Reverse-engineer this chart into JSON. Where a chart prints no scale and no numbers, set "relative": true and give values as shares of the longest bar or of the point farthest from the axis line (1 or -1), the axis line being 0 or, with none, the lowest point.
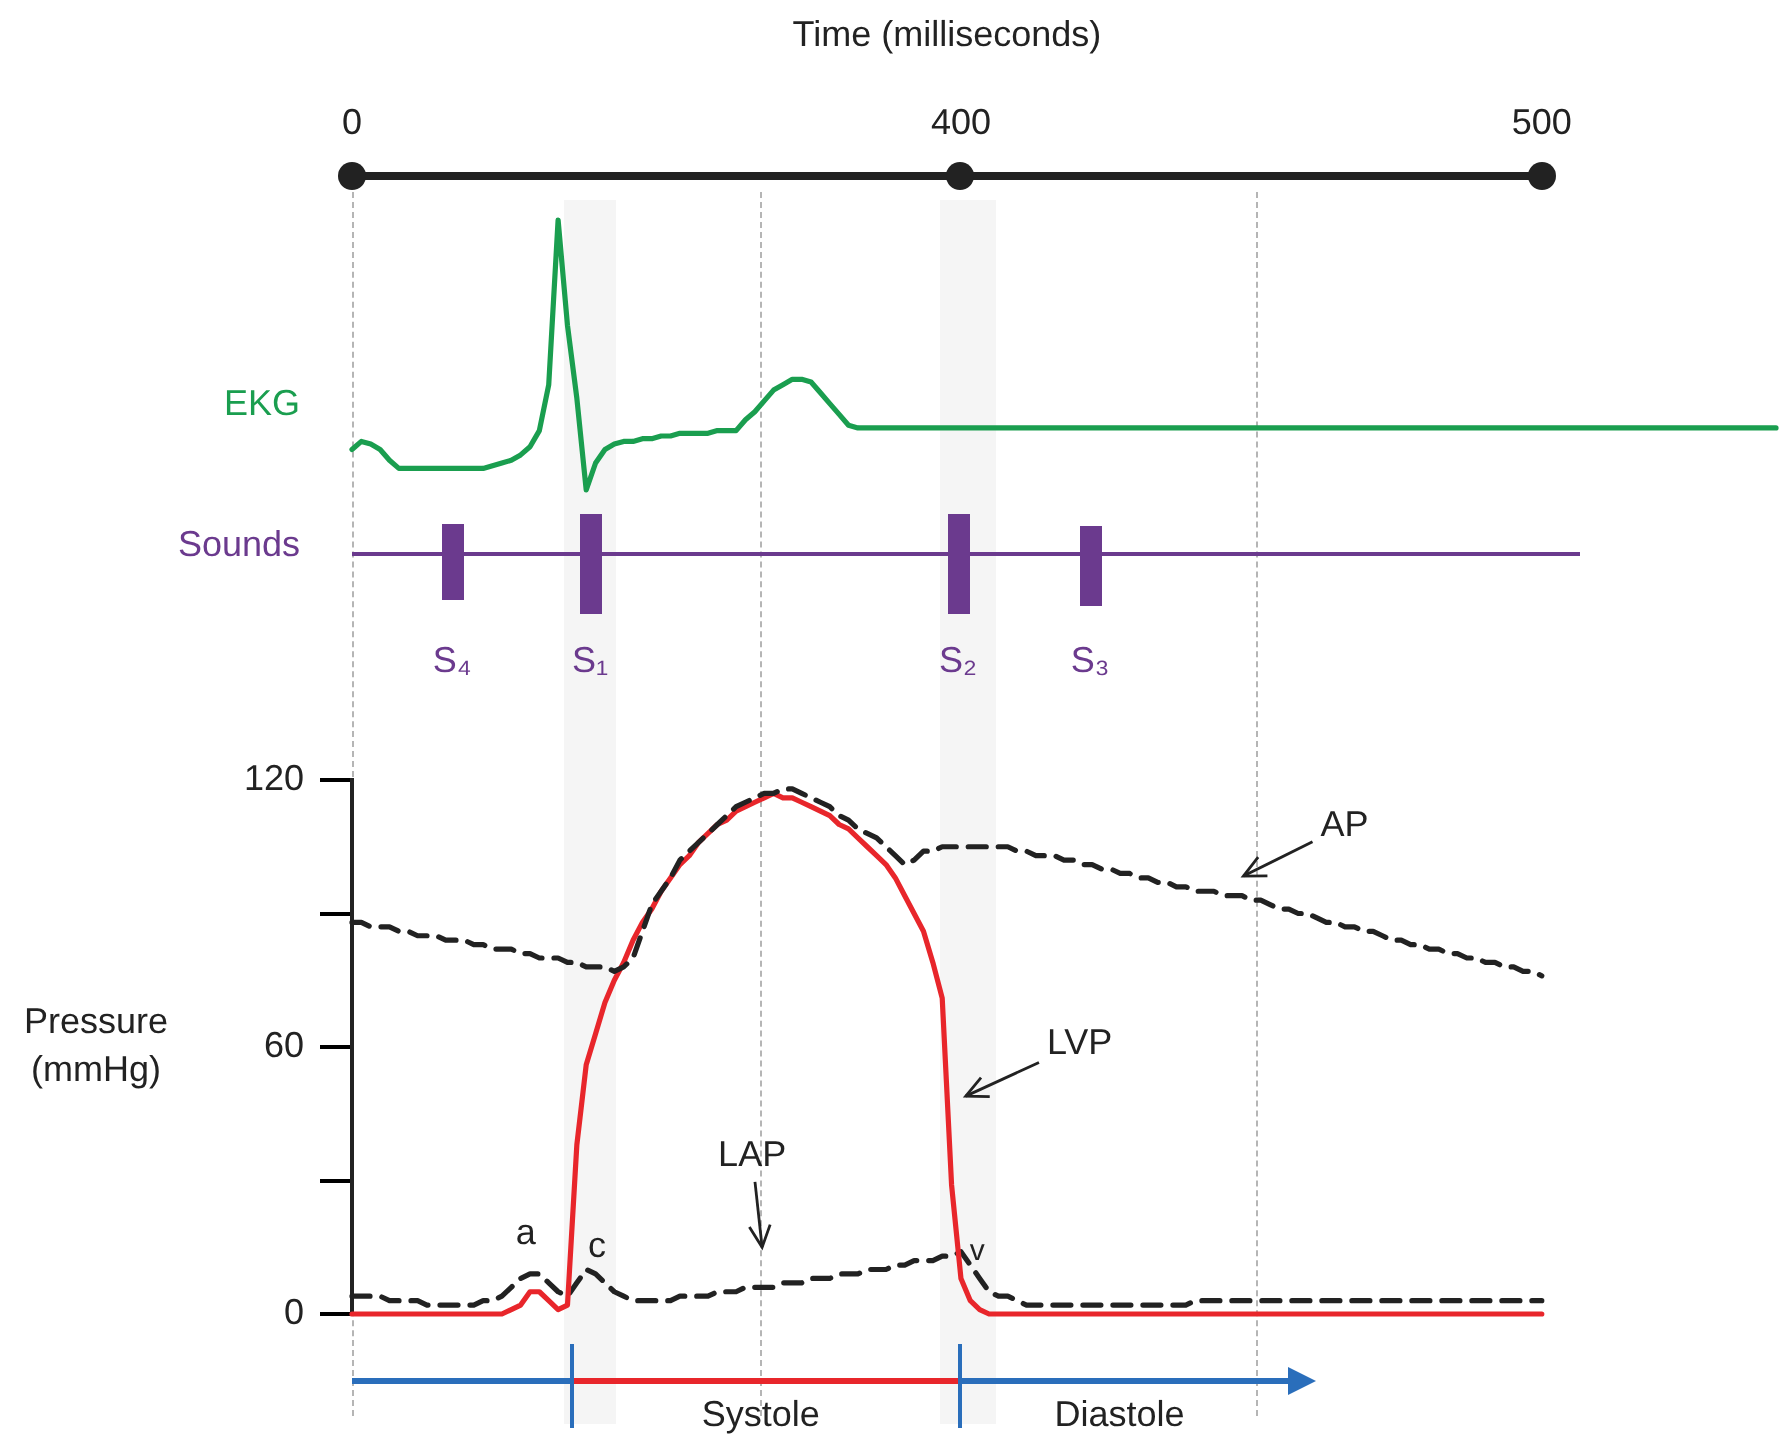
{
  "chart_data": [
    {
      "type": "line",
      "xlabel": "Time (milliseconds)",
      "ylabel": "EKG",
      "relative": true,
      "tick_labels": "x",
      "categories": [
        "0",
        null,
        null,
        null,
        null,
        null,
        null,
        null,
        null,
        null,
        null,
        null,
        null,
        null,
        null,
        null,
        null,
        null,
        null,
        null,
        null,
        null,
        null,
        null,
        null,
        null,
        null,
        null,
        null,
        null,
        null,
        null,
        null,
        null,
        null,
        null,
        null,
        null,
        null,
        null,
        null,
        null,
        null,
        null,
        null,
        null,
        null,
        null,
        null,
        null,
        null,
        null,
        null,
        null,
        null,
        null,
        null,
        null,
        null,
        null,
        null,
        null,
        null,
        null,
        null,
        "400",
        null,
        null,
        null,
        null,
        null,
        null,
        null,
        null,
        null,
        null,
        null,
        null,
        null,
        null,
        null,
        null,
        null,
        null,
        null,
        null,
        null,
        null,
        null,
        null,
        null,
        null,
        null,
        null,
        null,
        null,
        null,
        null,
        null,
        null,
        null,
        null,
        null,
        null,
        null,
        null,
        null,
        null,
        null,
        null,
        null,
        null,
        null,
        null,
        null,
        null,
        null,
        null,
        null,
        null,
        null,
        null,
        null,
        null,
        null,
        null,
        null,
        "500",
        null,
        null,
        null,
        null,
        null,
        null,
        null,
        null,
        null,
        null,
        null,
        null,
        null,
        null,
        null,
        null,
        null,
        null,
        null,
        null,
        null,
        null,
        null,
        null,
        null
      ],
      "series": [
        {
          "color": "#1a9e4f",
          "values": [
            0.15,
            0.18,
            0.17,
            0.15,
            0.11,
            0.08,
            0.08,
            0.08,
            0.08,
            0.08,
            0.08,
            0.08,
            0.08,
            0.08,
            0.08,
            0.09,
            0.1,
            0.11,
            0.13,
            0.16,
            0.22,
            0.39,
            1,
            0.61,
            0.34,
            0,
            0.1,
            0.15,
            0.17,
            0.18,
            0.18,
            0.19,
            0.19,
            0.2,
            0.2,
            0.21,
            0.21,
            0.21,
            0.21,
            0.22,
            0.22,
            0.22,
            0.26,
            0.29,
            0.33,
            0.37,
            0.39,
            0.41,
            0.41,
            0.4,
            0.36,
            0.32,
            0.28,
            0.24,
            0.23,
            0.23,
            0.23,
            0.23,
            0.23,
            0.23,
            0.23,
            0.23,
            0.23,
            0.23,
            0.23,
            0.23,
            0.23,
            0.23,
            0.23,
            0.23,
            0.23,
            0.23,
            0.23,
            0.23,
            0.23,
            0.23,
            0.23,
            0.23,
            0.23,
            0.23,
            0.23,
            0.23,
            0.23,
            0.23,
            0.23,
            0.23,
            0.23,
            0.23,
            0.23,
            0.23,
            0.23,
            0.23,
            0.23,
            0.23,
            0.23,
            0.23,
            0.23,
            0.23,
            0.23,
            0.23,
            0.23,
            0.23,
            0.23,
            0.23,
            0.23,
            0.23,
            0.23,
            0.23,
            0.23,
            0.23,
            0.23,
            0.23,
            0.23,
            0.23,
            0.23,
            0.23,
            0.23,
            0.23,
            0.23,
            0.23,
            0.23,
            0.23,
            0.23,
            0.23,
            0.23,
            0.23,
            0.23,
            0.23,
            0.23,
            0.23,
            0.23,
            0.23,
            0.23,
            0.23,
            0.23,
            0.23,
            0.23,
            0.23,
            0.23,
            0.23,
            0.23,
            0.23,
            0.23,
            0.23,
            0.23,
            0.23,
            0.23,
            0.23,
            0.23,
            0.23,
            0.23,
            0.23,
            0.23
          ]
        }
      ]
    },
    {
      "type": "other",
      "title": "Sounds",
      "annotations": [
        "S₄",
        "S₁",
        "S₂",
        "S₃"
      ]
    },
    {
      "type": "line",
      "ylabel": "Pressure (mmHg)",
      "tick_labels": "y",
      "ylim": [
        0,
        120
      ],
      "yticks": [
        0,
        {
          "value": 30,
          "label": null
        },
        60,
        {
          "value": 90,
          "label": null
        },
        120
      ],
      "categories": [
        "0",
        null,
        null,
        null,
        null,
        null,
        null,
        null,
        null,
        null,
        null,
        null,
        null,
        null,
        null,
        null,
        null,
        null,
        null,
        null,
        null,
        null,
        null,
        null,
        null,
        null,
        null,
        null,
        null,
        null,
        null,
        null,
        null,
        null,
        null,
        null,
        null,
        null,
        null,
        null,
        null,
        null,
        null,
        null,
        null,
        null,
        null,
        null,
        null,
        null,
        null,
        null,
        null,
        null,
        null,
        null,
        null,
        null,
        null,
        null,
        null,
        null,
        null,
        null,
        null,
        "400",
        null,
        null,
        null,
        null,
        null,
        null,
        null,
        null,
        null,
        null,
        null,
        null,
        null,
        null,
        null,
        null,
        null,
        null,
        null,
        null,
        null,
        null,
        null,
        null,
        null,
        null,
        null,
        null,
        null,
        null,
        null,
        null,
        null,
        null,
        null,
        null,
        null,
        null,
        null,
        null,
        null,
        null,
        null,
        null,
        null,
        null,
        null,
        null,
        null,
        null,
        null,
        null,
        null,
        null,
        null,
        null,
        null,
        null,
        null,
        null,
        null,
        "500",
        null,
        null,
        null,
        null,
        null,
        null,
        null,
        null,
        null,
        null,
        null,
        null,
        null,
        null,
        null,
        null,
        null,
        null,
        null,
        null,
        null,
        null,
        null,
        null,
        null
      ],
      "series": [
        {
          "color": "#222222",
          "line_style": "dashed",
          "values": [
            88,
            88,
            87,
            87,
            87,
            86,
            86,
            85,
            85,
            85,
            84,
            84,
            84,
            83,
            83,
            82,
            82,
            82,
            81,
            81,
            80,
            80,
            80,
            79,
            79,
            78,
            78,
            78,
            77,
            78,
            80,
            86,
            92,
            95,
            98,
            102,
            104,
            106,
            108,
            110,
            112,
            114,
            115,
            116,
            117,
            117,
            118,
            118,
            117,
            116,
            115,
            114,
            112,
            111,
            109,
            108,
            107,
            105,
            103,
            101,
            102,
            104,
            104,
            105,
            105,
            105,
            105,
            105,
            105,
            105,
            105,
            104,
            104,
            103,
            103,
            103,
            102,
            102,
            101,
            101,
            100,
            100,
            99,
            99,
            98,
            98,
            97,
            97,
            96,
            96,
            95,
            95,
            95,
            94,
            94,
            94,
            93,
            93,
            92,
            91,
            91,
            90,
            90,
            89,
            88,
            88,
            87,
            87,
            86,
            86,
            85,
            84,
            84,
            83,
            83,
            82,
            82,
            81,
            81,
            80,
            80,
            79,
            79,
            78,
            78,
            77,
            77,
            76,
            null,
            null,
            null,
            null,
            null,
            null,
            null,
            null,
            null,
            null,
            null,
            null,
            null,
            null,
            null,
            null,
            null,
            null,
            null,
            null,
            null,
            null,
            null,
            null,
            null
          ]
        },
        {
          "color": "#e8262b",
          "line_style": "solid",
          "values": [
            0,
            0,
            0,
            0,
            0,
            0,
            0,
            0,
            0,
            0,
            0,
            0,
            0,
            0,
            0,
            0,
            0,
            1,
            2,
            5,
            5,
            3,
            1,
            2,
            38,
            56,
            63,
            70,
            75,
            79,
            84,
            88,
            91,
            95,
            98,
            101,
            103,
            106,
            108,
            110,
            111,
            113,
            114,
            115,
            116,
            117,
            116,
            116,
            115,
            114,
            113,
            112,
            110,
            109,
            107,
            105,
            103,
            101,
            98,
            94,
            90,
            86,
            79,
            71,
            29,
            8,
            3,
            1,
            0,
            0,
            0,
            0,
            0,
            0,
            0,
            0,
            0,
            0,
            0,
            0,
            0,
            0,
            0,
            0,
            0,
            0,
            0,
            0,
            0,
            0,
            0,
            0,
            0,
            0,
            0,
            0,
            0,
            0,
            0,
            0,
            0,
            0,
            0,
            0,
            0,
            0,
            0,
            0,
            0,
            0,
            0,
            0,
            0,
            0,
            0,
            0,
            0,
            0,
            0,
            0,
            0,
            0,
            0,
            0,
            0,
            0,
            0,
            0,
            null,
            null,
            null,
            null,
            null,
            null,
            null,
            null,
            null,
            null,
            null,
            null,
            null,
            null,
            null,
            null,
            null,
            null,
            null,
            null,
            null,
            null,
            null,
            null,
            null
          ]
        },
        {
          "color": "#222222",
          "line_style": "dashed",
          "values": [
            4,
            4,
            4,
            4,
            3,
            3,
            3,
            3,
            2,
            2,
            2,
            2,
            2,
            2,
            3,
            3,
            4,
            6,
            8,
            9,
            9,
            7,
            5,
            4,
            7,
            10,
            9,
            7,
            5,
            4,
            3,
            3,
            3,
            3,
            3,
            4,
            4,
            4,
            4,
            5,
            5,
            5,
            6,
            6,
            6,
            6,
            7,
            7,
            7,
            8,
            8,
            8,
            9,
            9,
            9,
            10,
            10,
            10,
            11,
            11,
            12,
            12,
            12,
            13,
            13,
            14,
            11,
            8,
            5,
            4,
            4,
            3,
            2,
            2,
            2,
            2,
            2,
            2,
            2,
            2,
            2,
            2,
            2,
            2,
            2,
            2,
            2,
            2,
            2,
            2,
            3,
            3,
            3,
            3,
            3,
            3,
            3,
            3,
            3,
            3,
            3,
            3,
            3,
            3,
            3,
            3,
            3,
            3,
            3,
            3,
            3,
            3,
            3,
            3,
            3,
            3,
            3,
            3,
            3,
            3,
            3,
            3,
            3,
            3,
            3,
            3,
            3,
            3,
            null,
            null,
            null,
            null,
            null,
            null,
            null,
            null,
            null,
            null,
            null,
            null,
            null,
            null,
            null,
            null,
            null,
            null,
            null,
            null,
            null,
            null,
            null,
            null,
            null
          ]
        }
      ],
      "annotations": [
        "a",
        "c",
        "v",
        "LAP",
        "LVP",
        "AP",
        "Systole",
        "Diastole"
      ]
    }
  ]
}
